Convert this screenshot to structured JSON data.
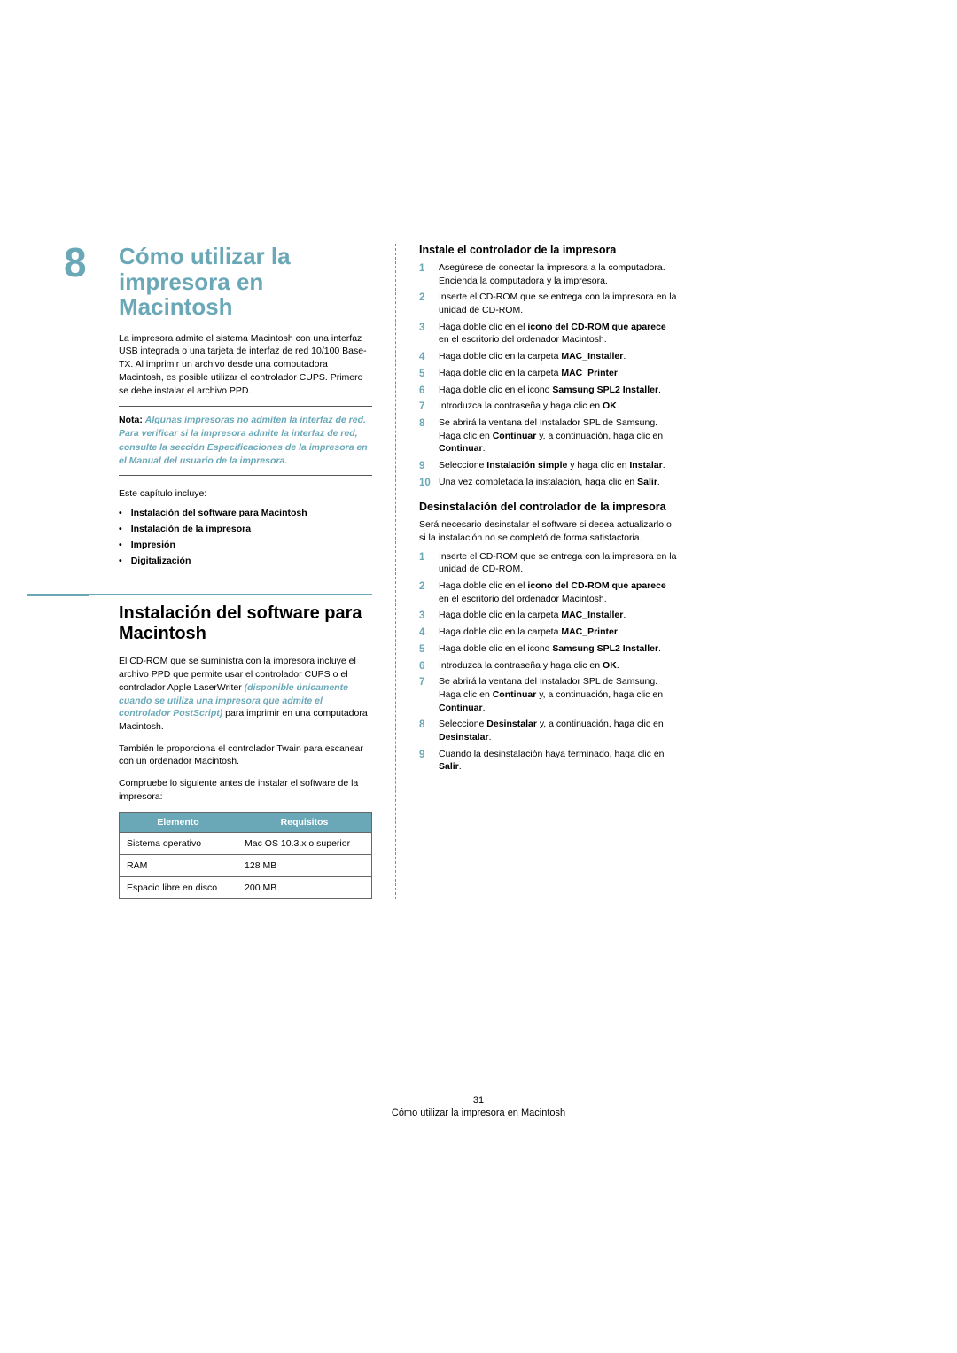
{
  "chapter": {
    "number": "8",
    "title": "Cómo utilizar la impresora en Macintosh",
    "intro": "La impresora admite el sistema Macintosh con una interfaz USB integrada o una tarjeta de interfaz de red 10/100 Base-TX. Al imprimir un archivo desde una computadora Macintosh, es posible utilizar el controlador CUPS. Primero se debe instalar el archivo PPD."
  },
  "note": {
    "label": "Nota:",
    "text": "Algunas impresoras no admiten la interfaz de red. Para verificar si la impresora admite la interfaz de red, consulte la sección Especificaciones de la impresora en el Manual del usuario de la impresora."
  },
  "includes_intro": "Este capítulo incluye:",
  "toc": [
    "Instalación del software para Macintosh",
    "Instalación de la impresora",
    "Impresión",
    "Digitalización"
  ],
  "section1": {
    "title": "Instalación del software para Macintosh",
    "para1_pre": "El CD-ROM que se suministra con la impresora incluye el archivo PPD que permite usar el controlador CUPS o el controlador Apple LaserWriter ",
    "para1_italic": "(disponible únicamente cuando se utiliza una impresora que admite el controlador PostScript)",
    "para1_post": " para imprimir en una computadora Macintosh.",
    "para2": "También le proporciona el controlador Twain para escanear con un ordenador Macintosh.",
    "para3": "Compruebe lo siguiente antes de instalar el software de la impresora:"
  },
  "table": {
    "headers": [
      "Elemento",
      "Requisitos"
    ],
    "rows": [
      [
        "Sistema operativo",
        "Mac OS 10.3.x o superior"
      ],
      [
        "RAM",
        "128 MB"
      ],
      [
        "Espacio libre en disco",
        "200 MB"
      ]
    ]
  },
  "install": {
    "title": "Instale el controlador de la impresora",
    "steps": [
      {
        "n": "1",
        "html": "Asegúrese de conectar la impresora a la computadora. Encienda la computadora y la impresora."
      },
      {
        "n": "2",
        "html": "Inserte el CD-ROM que se entrega con la impresora en la unidad de CD-ROM."
      },
      {
        "n": "3",
        "html": "Haga doble clic en el <b>icono del CD-ROM que aparece</b> en el escritorio del ordenador Macintosh."
      },
      {
        "n": "4",
        "html": "Haga doble clic en la carpeta <b>MAC_Installer</b>."
      },
      {
        "n": "5",
        "html": "Haga doble clic en la carpeta <b>MAC_Printer</b>."
      },
      {
        "n": "6",
        "html": "Haga doble clic en el icono <b>Samsung SPL2 Installer</b>."
      },
      {
        "n": "7",
        "html": "Introduzca la contraseña y haga clic en <b>OK</b>."
      },
      {
        "n": "8",
        "html": "Se abrirá la ventana del Instalador SPL de Samsung. Haga clic en <b>Continuar</b> y, a continuación, haga clic en <b>Continuar</b>."
      },
      {
        "n": "9",
        "html": "Seleccione <b>Instalación simple</b> y haga clic en <b>Instalar</b>."
      },
      {
        "n": "10",
        "html": "Una vez completada la instalación, haga clic en <b>Salir</b>."
      }
    ]
  },
  "uninstall": {
    "title": "Desinstalación del controlador de la impresora",
    "intro": "Será necesario desinstalar el software si desea actualizarlo o si la instalación no se completó de forma satisfactoria.",
    "steps": [
      {
        "n": "1",
        "html": "Inserte el CD-ROM que se entrega con la impresora en la unidad de CD-ROM."
      },
      {
        "n": "2",
        "html": "Haga doble clic en el <b>icono del CD-ROM que aparece</b> en el escritorio del ordenador Macintosh."
      },
      {
        "n": "3",
        "html": "Haga doble clic en la carpeta <b>MAC_Installer</b>."
      },
      {
        "n": "4",
        "html": "Haga doble clic en la carpeta <b>MAC_Printer</b>."
      },
      {
        "n": "5",
        "html": "Haga doble clic en el icono <b>Samsung SPL2 Installer</b>."
      },
      {
        "n": "6",
        "html": "Introduzca la contraseña y haga clic en <b>OK</b>."
      },
      {
        "n": "7",
        "html": "Se abrirá la ventana del Instalador SPL de Samsung. Haga clic en <b>Continuar</b> y, a continuación, haga clic en <b>Continuar</b>."
      },
      {
        "n": "8",
        "html": "Seleccione <b>Desinstalar</b> y, a continuación, haga clic en <b>Desinstalar</b>."
      },
      {
        "n": "9",
        "html": "Cuando la desinstalación haya terminado, haga clic en <b>Salir</b>."
      }
    ]
  },
  "footer": {
    "page": "31",
    "title": "Cómo utilizar la impresora en Macintosh"
  }
}
